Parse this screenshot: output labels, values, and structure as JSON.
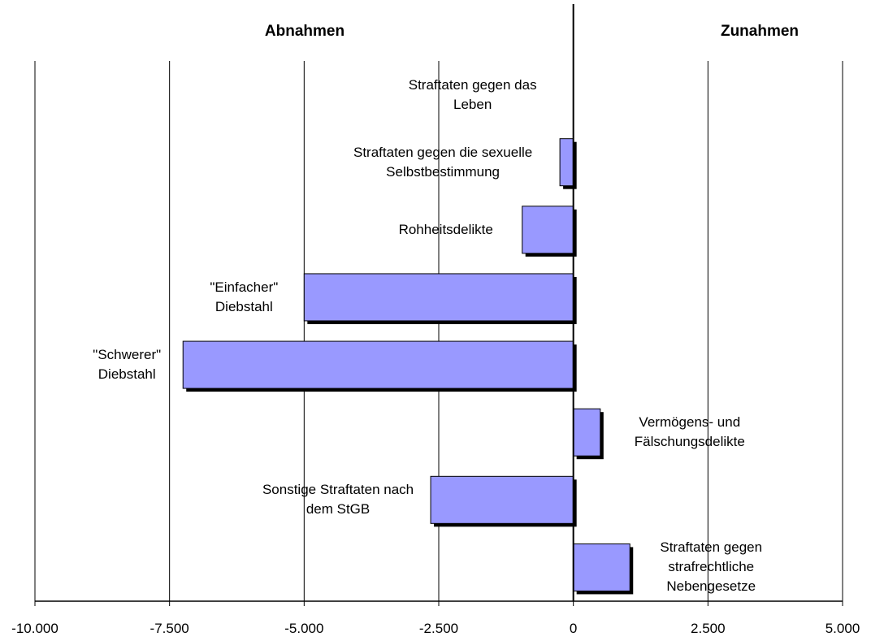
{
  "chart_data": {
    "type": "bar",
    "orientation": "horizontal",
    "annotations": [
      "Abnahmen",
      "Zunahmen"
    ],
    "categories": [
      "Straftaten gegen das Leben",
      "Straftaten gegen die sexuelle Selbstbestimmung",
      "Rohheitsdelikte",
      "\"Einfacher\" Diebstahl",
      "\"Schwerer\" Diebstahl",
      "Vermögens- und Fälschungsdelikte",
      "Sonstige Straftaten nach dem StGB",
      "Straftaten gegen strafrechtliche Nebengesetze"
    ],
    "values": [
      0,
      -250,
      -950,
      -5000,
      -7250,
      500,
      -2650,
      1050
    ],
    "color": "#9999ff",
    "xlim": [
      -10000,
      5000
    ],
    "xticks": [
      {
        "value": -10000,
        "label": "-10.000"
      },
      {
        "value": -7500,
        "label": "-7.500"
      },
      {
        "value": -5000,
        "label": "-5.000"
      },
      {
        "value": -2500,
        "label": "-2.500"
      },
      0,
      {
        "value": 2500,
        "label": "2.500"
      },
      {
        "value": 5000,
        "label": "5.000"
      }
    ],
    "grid": true
  }
}
